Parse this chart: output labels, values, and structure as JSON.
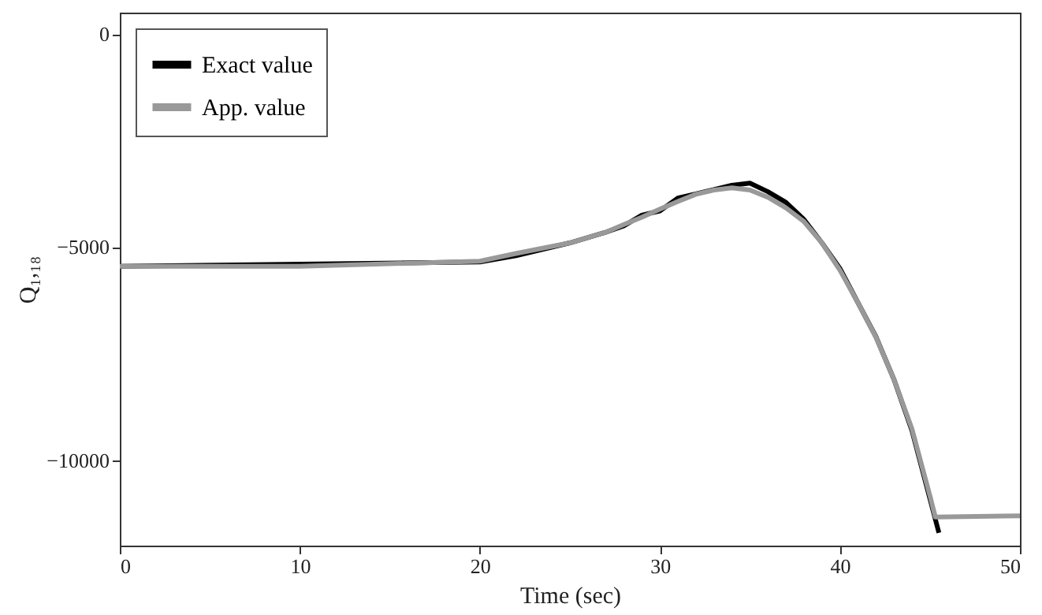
{
  "chart_data": {
    "type": "line",
    "xlabel": "Time (sec)",
    "ylabel": "Q₁,₁₈",
    "xlim": [
      0,
      50
    ],
    "xticks": [
      0,
      10,
      20,
      30,
      40,
      50
    ],
    "ylim": [
      -12000,
      500
    ],
    "yticks": [
      -10000,
      -5000,
      0
    ],
    "grid": false,
    "legend": "top left",
    "line_style": "solid",
    "marker": "none",
    "series": [
      {
        "name": "Exact value",
        "color": "#000000",
        "x": [
          0,
          20,
          22,
          25,
          27,
          28,
          29,
          30,
          31,
          32,
          33,
          34,
          35,
          36,
          37,
          38,
          39,
          40,
          41,
          42,
          43,
          44,
          45,
          45.5
        ],
        "values": [
          -5450,
          -5350,
          -5200,
          -4900,
          -4650,
          -4500,
          -4250,
          -4150,
          -3850,
          -3750,
          -3650,
          -3550,
          -3500,
          -3700,
          -3950,
          -4350,
          -4900,
          -5500,
          -6300,
          -7100,
          -8100,
          -9300,
          -10900,
          -11700
        ]
      },
      {
        "name": "App. value",
        "color": "#999999",
        "x": [
          0,
          10,
          20,
          22,
          25,
          27,
          28,
          29,
          30,
          31,
          32,
          33,
          34,
          35,
          36,
          37,
          38,
          39,
          40,
          41,
          42,
          43,
          44,
          45,
          45.3,
          50
        ],
        "values": [
          -5450,
          -5450,
          -5330,
          -5150,
          -4900,
          -4650,
          -4470,
          -4300,
          -4110,
          -3930,
          -3760,
          -3660,
          -3610,
          -3660,
          -3830,
          -4080,
          -4400,
          -4900,
          -5540,
          -6300,
          -7110,
          -8100,
          -9260,
          -10830,
          -11330,
          -11300
        ]
      }
    ]
  }
}
